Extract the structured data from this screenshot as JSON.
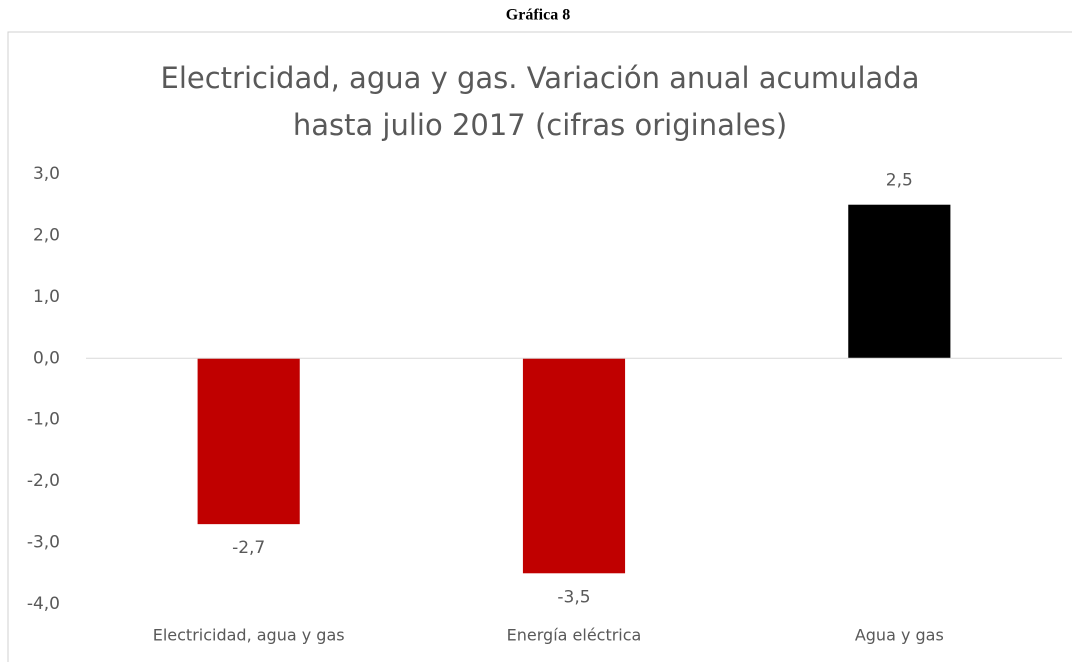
{
  "caption": "Gráfica 8",
  "chart_data": {
    "type": "bar",
    "title": [
      "Electricidad, agua y gas. Variación anual acumulada",
      "hasta julio 2017 (cifras originales)"
    ],
    "categories": [
      "Electricidad, agua y gas",
      "Energía eléctrica",
      "Agua y gas"
    ],
    "values": [
      -2.7,
      -3.5,
      2.5
    ],
    "value_labels": [
      "-2,7",
      "-3,5",
      "2,5"
    ],
    "colors": [
      "#c00000",
      "#c00000",
      "#000000"
    ],
    "ylim": [
      -4,
      3
    ],
    "yticks": [
      {
        "value": -4,
        "label": "-4,0"
      },
      {
        "value": -3,
        "label": "-3,0"
      },
      {
        "value": -2,
        "label": "-2,0"
      },
      {
        "value": -1,
        "label": "-1,0"
      },
      {
        "value": 0,
        "label": "0,0"
      },
      {
        "value": 1,
        "label": "1,0"
      },
      {
        "value": 2,
        "label": "2,0"
      },
      {
        "value": 3,
        "label": "3,0"
      }
    ],
    "grid": false
  }
}
